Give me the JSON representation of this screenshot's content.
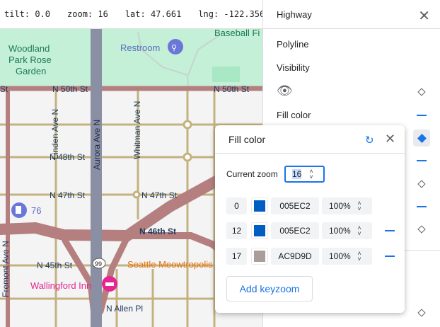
{
  "status_bar": {
    "tilt": "tilt: 0.0",
    "zoom": "zoom: 16",
    "lat": "lat: 47.661",
    "lng": "lng: -122.356"
  },
  "map": {
    "labels": {
      "woodland1": "Woodland",
      "woodland2": "Park Rose",
      "woodland3": "Garden",
      "restroom": "Restroom",
      "baseball": "Baseball Fi",
      "aurora": "Aurora Ave N",
      "n50a": "N 50th St",
      "n50b": "N 50th St",
      "st_edge": "St",
      "linden": "Linden Ave N",
      "whitman": "Whitman Ave N",
      "n48": "N 48th St",
      "n47a": "N 47th St",
      "n47b": "N 47th St",
      "gas": "76",
      "n46": "N 46th St",
      "n45": "N 45th St",
      "fremont": "Fremont Ave N",
      "meow": "Seattle Meowtropolis",
      "inn": "Wallingford Inn",
      "allen": "N Allen Pl",
      "route": "99"
    }
  },
  "panel": {
    "title": "Highway",
    "section": "Polyline",
    "visibility_label": "Visibility",
    "fill_color_label": "Fill color"
  },
  "popup": {
    "title": "Fill color",
    "current_zoom_label": "Current zoom",
    "current_zoom": "16",
    "keyzooms": [
      {
        "zoom": "0",
        "color": "#005EC2",
        "hex": "005EC2",
        "opacity": "100%"
      },
      {
        "zoom": "12",
        "color": "#005EC2",
        "hex": "005EC2",
        "opacity": "100%"
      },
      {
        "zoom": "17",
        "color": "#AC9D9D",
        "hex": "AC9D9D",
        "opacity": "100%"
      }
    ],
    "add_label": "Add keyzoom"
  },
  "colors": {
    "accent": "#1a73e8",
    "highway": "#b57f7f",
    "aurora": "#8a8fa3",
    "park": "#c3f0d6"
  }
}
